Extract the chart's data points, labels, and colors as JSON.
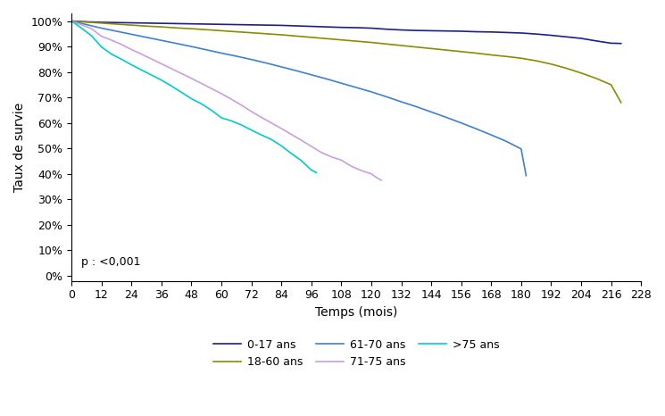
{
  "title": "",
  "xlabel": "Temps (mois)",
  "ylabel": "Taux de survie",
  "pvalue": "p : <0,001",
  "xlim": [
    0,
    228
  ],
  "ylim": [
    -0.02,
    1.03
  ],
  "xticks": [
    0,
    12,
    24,
    36,
    48,
    60,
    72,
    84,
    96,
    108,
    120,
    132,
    144,
    156,
    168,
    180,
    192,
    204,
    216,
    228
  ],
  "yticks": [
    0.0,
    0.1,
    0.2,
    0.3,
    0.4,
    0.5,
    0.6,
    0.7,
    0.8,
    0.9,
    1.0
  ],
  "curves": [
    {
      "label": "0-17 ans",
      "color": "#1e1e8c",
      "x": [
        0,
        6,
        12,
        18,
        24,
        30,
        36,
        42,
        48,
        54,
        60,
        66,
        72,
        78,
        84,
        90,
        96,
        102,
        108,
        114,
        120,
        126,
        132,
        138,
        144,
        150,
        156,
        162,
        168,
        174,
        180,
        186,
        192,
        198,
        204,
        210,
        216,
        220
      ],
      "y": [
        1.0,
        0.997,
        0.995,
        0.994,
        0.993,
        0.992,
        0.991,
        0.99,
        0.989,
        0.988,
        0.987,
        0.986,
        0.985,
        0.984,
        0.983,
        0.981,
        0.979,
        0.977,
        0.975,
        0.974,
        0.972,
        0.968,
        0.965,
        0.963,
        0.962,
        0.961,
        0.96,
        0.958,
        0.957,
        0.955,
        0.953,
        0.949,
        0.944,
        0.938,
        0.932,
        0.922,
        0.913,
        0.912
      ]
    },
    {
      "label": "18-60 ans",
      "color": "#8b8b00",
      "x": [
        0,
        6,
        12,
        18,
        24,
        30,
        36,
        42,
        48,
        54,
        60,
        66,
        72,
        78,
        84,
        90,
        96,
        102,
        108,
        114,
        120,
        126,
        132,
        138,
        144,
        150,
        156,
        162,
        168,
        174,
        180,
        186,
        192,
        198,
        204,
        210,
        216,
        220
      ],
      "y": [
        1.0,
        0.996,
        0.992,
        0.988,
        0.984,
        0.98,
        0.977,
        0.973,
        0.97,
        0.966,
        0.962,
        0.958,
        0.954,
        0.95,
        0.946,
        0.941,
        0.936,
        0.931,
        0.926,
        0.921,
        0.916,
        0.91,
        0.904,
        0.898,
        0.892,
        0.886,
        0.88,
        0.874,
        0.867,
        0.861,
        0.854,
        0.844,
        0.831,
        0.815,
        0.796,
        0.775,
        0.75,
        0.68
      ]
    },
    {
      "label": "61-70 ans",
      "color": "#4080d0",
      "x": [
        0,
        6,
        12,
        18,
        24,
        30,
        36,
        42,
        48,
        54,
        60,
        66,
        72,
        78,
        84,
        90,
        96,
        102,
        108,
        114,
        120,
        126,
        132,
        138,
        144,
        150,
        156,
        162,
        168,
        174,
        180,
        182
      ],
      "y": [
        1.0,
        0.986,
        0.972,
        0.96,
        0.948,
        0.936,
        0.924,
        0.912,
        0.9,
        0.887,
        0.874,
        0.862,
        0.849,
        0.835,
        0.82,
        0.805,
        0.789,
        0.773,
        0.756,
        0.739,
        0.722,
        0.703,
        0.683,
        0.664,
        0.643,
        0.622,
        0.6,
        0.577,
        0.553,
        0.528,
        0.498,
        0.393
      ]
    },
    {
      "label": "71-75 ans",
      "color": "#c8a0e0",
      "x": [
        0,
        4,
        8,
        12,
        16,
        20,
        24,
        28,
        32,
        36,
        40,
        44,
        48,
        52,
        56,
        60,
        64,
        68,
        72,
        76,
        80,
        84,
        88,
        92,
        96,
        100,
        104,
        108,
        112,
        116,
        120,
        122,
        124
      ],
      "y": [
        1.0,
        0.985,
        0.97,
        0.94,
        0.925,
        0.908,
        0.888,
        0.87,
        0.851,
        0.832,
        0.813,
        0.794,
        0.775,
        0.755,
        0.735,
        0.715,
        0.693,
        0.67,
        0.645,
        0.622,
        0.6,
        0.578,
        0.555,
        0.532,
        0.508,
        0.484,
        0.467,
        0.454,
        0.43,
        0.413,
        0.4,
        0.386,
        0.375
      ]
    },
    {
      "label": ">75 ans",
      "color": "#00cccc",
      "x": [
        0,
        4,
        8,
        12,
        16,
        20,
        24,
        28,
        32,
        36,
        40,
        44,
        48,
        52,
        56,
        60,
        64,
        68,
        72,
        76,
        80,
        84,
        88,
        92,
        96,
        98
      ],
      "y": [
        1.0,
        0.972,
        0.942,
        0.898,
        0.87,
        0.85,
        0.828,
        0.808,
        0.788,
        0.768,
        0.745,
        0.72,
        0.695,
        0.675,
        0.65,
        0.62,
        0.608,
        0.592,
        0.572,
        0.553,
        0.535,
        0.51,
        0.48,
        0.452,
        0.415,
        0.405
      ]
    }
  ],
  "background_color": "#ffffff"
}
